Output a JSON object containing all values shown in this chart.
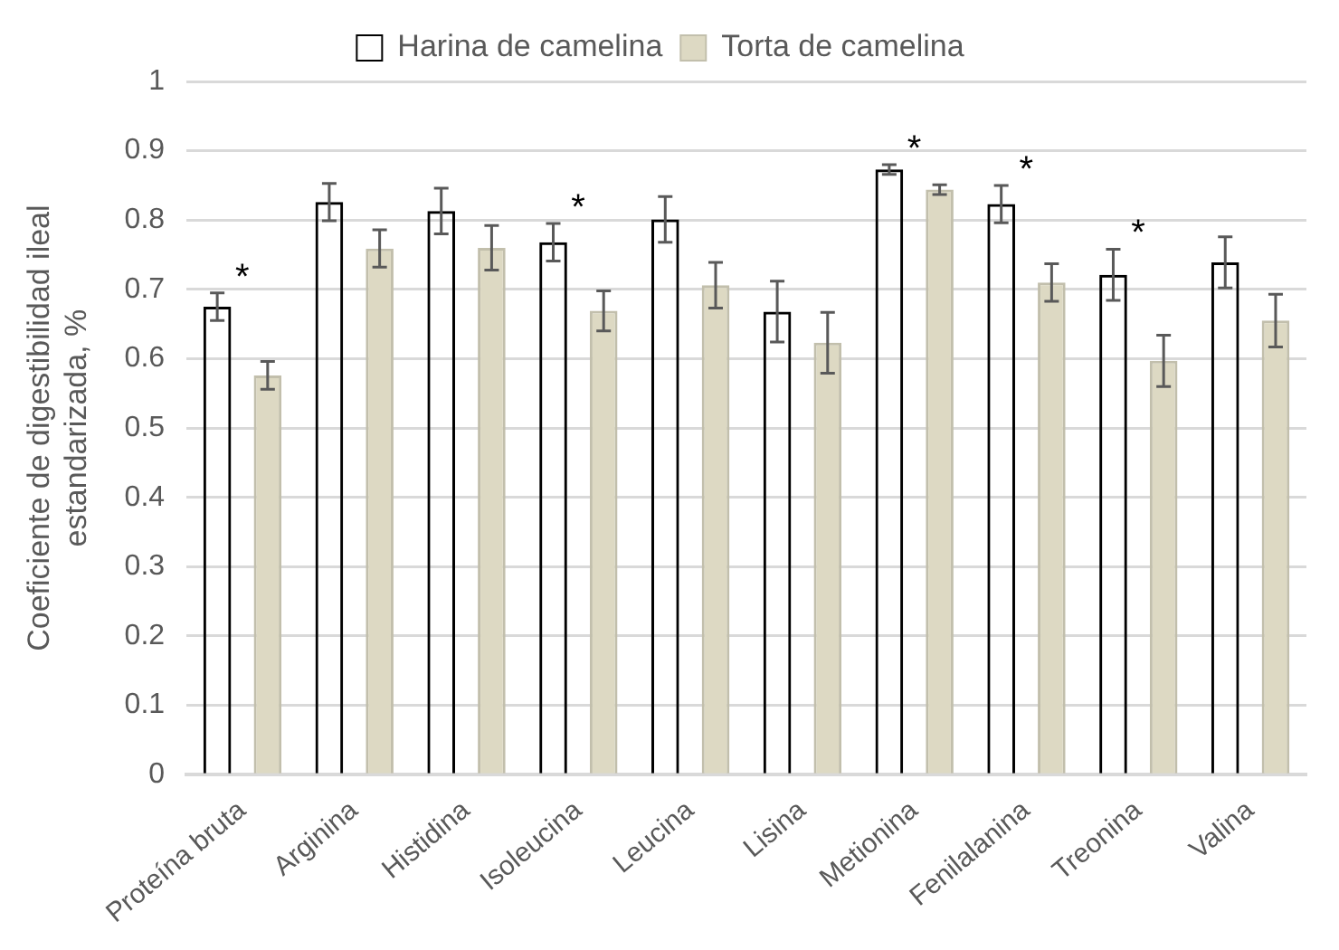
{
  "chart_data": {
    "type": "bar",
    "ylabel": "Coeficiente de digestibilidad ileal\nestandarizada, %",
    "categories": [
      "Proteína bruta",
      "Arginina",
      "Histidina",
      "Isoleucina",
      "Leucina",
      "Lisina",
      "Metionina",
      "Fenilalanina",
      "Treonina",
      "Valina"
    ],
    "series": [
      {
        "name": "Harina de camelina",
        "color": "#000000",
        "values": [
          0.675,
          0.826,
          0.813,
          0.768,
          0.801,
          0.668,
          0.873,
          0.823,
          0.721,
          0.739
        ],
        "errors": [
          0.02,
          0.027,
          0.033,
          0.027,
          0.033,
          0.044,
          0.007,
          0.027,
          0.037,
          0.037
        ],
        "value_labels": [
          "*",
          null,
          null,
          "*",
          null,
          null,
          "*",
          "*",
          "*",
          null
        ]
      },
      {
        "name": "Torta de camelina",
        "color": "#ddd9c3",
        "values": [
          0.576,
          0.759,
          0.76,
          0.669,
          0.706,
          0.623,
          0.844,
          0.71,
          0.597,
          0.655
        ],
        "errors": [
          0.02,
          0.027,
          0.032,
          0.029,
          0.033,
          0.044,
          0.007,
          0.027,
          0.037,
          0.038
        ]
      }
    ],
    "ylim": [
      0,
      1
    ],
    "yticks": [
      0,
      0.1,
      0.2,
      0.3,
      0.4,
      0.5,
      0.6,
      0.7,
      0.8,
      0.9,
      1
    ],
    "grid": "y",
    "legend": "top"
  }
}
